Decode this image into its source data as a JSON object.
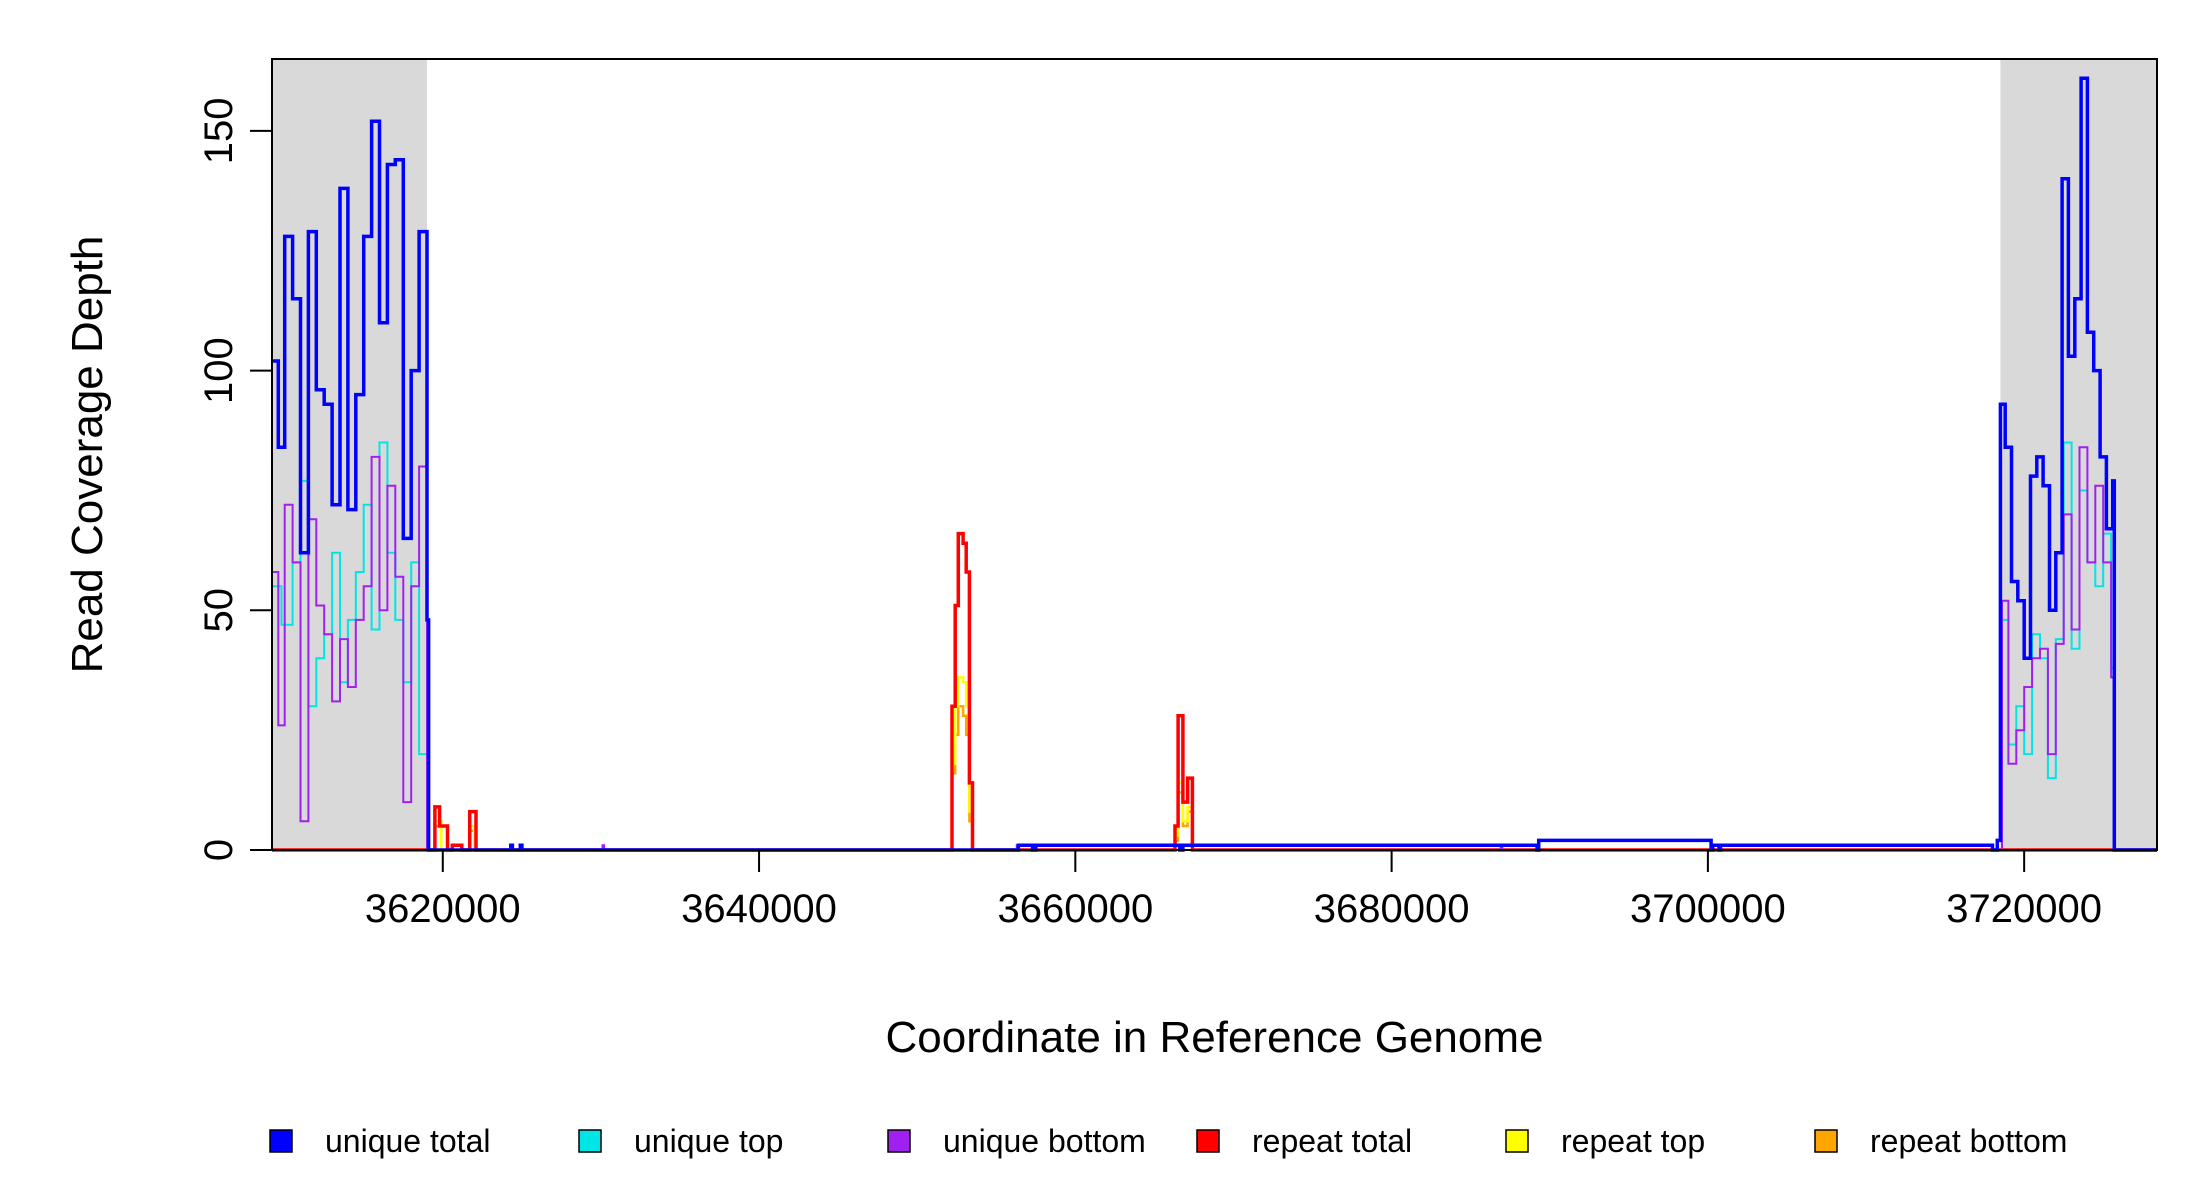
{
  "chart_data": {
    "type": "line",
    "title": "",
    "xlabel": "Coordinate in Reference Genome",
    "ylabel": "Read Coverage Depth",
    "xlim": [
      3609200,
      3728400
    ],
    "ylim": [
      0,
      165
    ],
    "x_ticks": [
      3620000,
      3640000,
      3660000,
      3680000,
      3700000,
      3720000
    ],
    "x_tick_labels": [
      "3620000",
      "3640000",
      "3660000",
      "3680000",
      "3700000",
      "3720000"
    ],
    "y_ticks": [
      0,
      50,
      100,
      150
    ],
    "y_tick_labels": [
      "0",
      "50",
      "100",
      "150"
    ],
    "grid": false,
    "legend_position": "bottom",
    "shaded_regions": [
      {
        "x_start": 3609200,
        "x_end": 3619000,
        "color": "#d9d9d9"
      },
      {
        "x_start": 3718500,
        "x_end": 3728400,
        "color": "#d9d9d9"
      }
    ],
    "series": [
      {
        "name": "unique total",
        "color": "#0000ff",
        "x": [
          3609200,
          3609600,
          3610000,
          3610500,
          3611000,
          3611500,
          3612000,
          3612500,
          3613000,
          3613500,
          3614000,
          3614500,
          3615000,
          3615500,
          3616000,
          3616500,
          3617000,
          3617500,
          3618000,
          3618500,
          3619000,
          3619100,
          3619300,
          3624300,
          3624400,
          3624900,
          3625000,
          3656300,
          3656400,
          3657300,
          3657500,
          3666600,
          3666800,
          3689200,
          3689300,
          3700200,
          3700300,
          3700700,
          3700800,
          3718000,
          3718300,
          3718500,
          3718800,
          3719200,
          3719600,
          3720000,
          3720400,
          3720800,
          3721200,
          3721600,
          3722000,
          3722400,
          3722800,
          3723200,
          3723600,
          3724000,
          3724400,
          3724800,
          3725200,
          3725600,
          3725700,
          3728400
        ],
        "values": [
          102,
          84,
          128,
          115,
          62,
          129,
          96,
          93,
          72,
          138,
          71,
          95,
          128,
          152,
          110,
          143,
          144,
          65,
          100,
          129,
          48,
          0,
          0,
          1,
          0,
          1,
          0,
          0,
          1,
          0,
          1,
          0,
          1,
          0,
          2,
          0,
          1,
          0,
          1,
          0,
          2,
          93,
          84,
          56,
          52,
          40,
          78,
          82,
          76,
          50,
          62,
          140,
          103,
          115,
          161,
          108,
          100,
          82,
          67,
          77,
          0,
          0
        ]
      },
      {
        "name": "unique top",
        "color": "#00e5e5",
        "x": [
          3609200,
          3609800,
          3610500,
          3611000,
          3611500,
          3612000,
          3612500,
          3613000,
          3613500,
          3614000,
          3614500,
          3615000,
          3615500,
          3616000,
          3616500,
          3617000,
          3617500,
          3618000,
          3618500,
          3619000,
          3619200,
          3718300,
          3718600,
          3719000,
          3719500,
          3720000,
          3720500,
          3721000,
          3721500,
          3722000,
          3722500,
          3723000,
          3723500,
          3724000,
          3724500,
          3725000,
          3725500,
          3725700,
          3728400
        ],
        "values": [
          55,
          47,
          60,
          77,
          30,
          40,
          45,
          62,
          35,
          48,
          58,
          72,
          46,
          85,
          62,
          48,
          35,
          60,
          20,
          0,
          0,
          0,
          48,
          22,
          30,
          20,
          45,
          40,
          15,
          44,
          85,
          42,
          75,
          60,
          55,
          66,
          38,
          0,
          0
        ]
      },
      {
        "name": "unique bottom",
        "color": "#a020f0",
        "x": [
          3609200,
          3609600,
          3610000,
          3610500,
          3611000,
          3611500,
          3612000,
          3612500,
          3613000,
          3613500,
          3614000,
          3614500,
          3615000,
          3615500,
          3616000,
          3616500,
          3617000,
          3617500,
          3618000,
          3618500,
          3619000,
          3619200,
          3630100,
          3630200,
          3656300,
          3656400,
          3686900,
          3687000,
          3718300,
          3718600,
          3719000,
          3719500,
          3720000,
          3720500,
          3721000,
          3721500,
          3722000,
          3722500,
          3723000,
          3723500,
          3724000,
          3724500,
          3725000,
          3725500,
          3725700,
          3728400
        ],
        "values": [
          58,
          26,
          72,
          60,
          6,
          69,
          51,
          45,
          31,
          44,
          34,
          48,
          55,
          82,
          50,
          76,
          57,
          10,
          55,
          80,
          0,
          0,
          1,
          0,
          1,
          0,
          1,
          0,
          0,
          52,
          18,
          25,
          34,
          40,
          42,
          20,
          43,
          70,
          46,
          84,
          60,
          76,
          60,
          36,
          0,
          0
        ]
      },
      {
        "name": "repeat total",
        "color": "#ff0000",
        "x": [
          3609200,
          3619000,
          3619500,
          3619800,
          3620300,
          3620600,
          3621200,
          3621500,
          3621700,
          3622100,
          3652000,
          3652200,
          3652400,
          3652600,
          3652900,
          3653100,
          3653300,
          3653500,
          3653600,
          3665000,
          3666300,
          3666500,
          3666800,
          3667100,
          3667400,
          3728400
        ],
        "values": [
          0,
          0,
          9,
          5,
          0,
          1,
          0,
          0,
          8,
          0,
          0,
          30,
          51,
          66,
          64,
          58,
          14,
          0,
          0,
          0,
          5,
          28,
          10,
          15,
          0,
          0
        ]
      },
      {
        "name": "repeat top",
        "color": "#ffff00",
        "x": [
          3609200,
          3619000,
          3619500,
          3619900,
          3621700,
          3622000,
          3652000,
          3652200,
          3652400,
          3652600,
          3652900,
          3653100,
          3653300,
          3653500,
          3653600,
          3665000,
          3666300,
          3666500,
          3666800,
          3667100,
          3667400,
          3728400
        ],
        "values": [
          0,
          0,
          6,
          0,
          5,
          0,
          0,
          18,
          30,
          36,
          35,
          30,
          8,
          0,
          0,
          0,
          3,
          14,
          6,
          9,
          0,
          0
        ]
      },
      {
        "name": "repeat bottom",
        "color": "#ffa500",
        "x": [
          3609200,
          3619000,
          3619500,
          3619900,
          3621700,
          3622000,
          3652000,
          3652200,
          3652400,
          3652600,
          3652900,
          3653100,
          3653300,
          3653500,
          3653600,
          3665000,
          3666300,
          3666500,
          3666800,
          3667100,
          3667400,
          3728400
        ],
        "values": [
          0,
          0,
          5,
          0,
          4,
          0,
          0,
          16,
          24,
          30,
          28,
          24,
          6,
          0,
          0,
          0,
          2,
          12,
          5,
          8,
          0,
          0
        ]
      }
    ]
  }
}
